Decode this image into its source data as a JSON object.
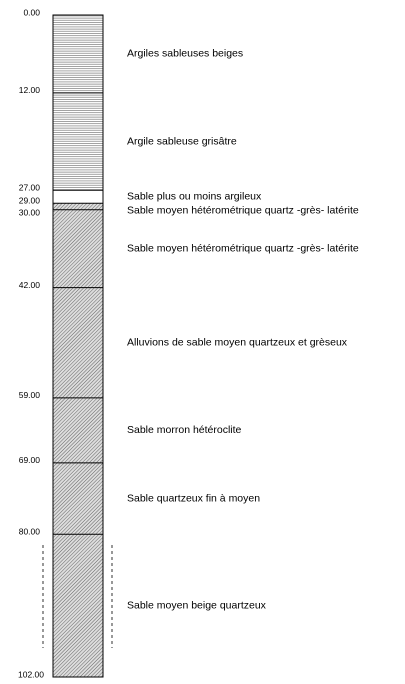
{
  "layers": [
    {
      "top": {
        "value": 0,
        "label": "0.00"
      },
      "description": "Argiles sableuses beiges",
      "pattern": "lines"
    },
    {
      "top": {
        "value": 12,
        "label": "12.00"
      },
      "description": "Argile sableuse grisâtre",
      "pattern": "lines"
    },
    {
      "top": {
        "value": 27,
        "label": "27.00"
      },
      "description": "Sable plus ou moins argileux",
      "pattern": "blank"
    },
    {
      "top": {
        "value": 29,
        "label": "29.00"
      },
      "description": "Sable moyen hétérométrique quartz -grès- latérite",
      "pattern": "hatch"
    },
    {
      "top": {
        "value": 30,
        "label": "30.00"
      },
      "description": "Sable moyen hétérométrique quartz -grès- latérite",
      "pattern": "hatch"
    },
    {
      "top": {
        "value": 42,
        "label": "42.00"
      },
      "description": "Alluvions de sable moyen quartzeux et grèseux",
      "pattern": "hatch"
    },
    {
      "top": {
        "value": 59,
        "label": "59.00"
      },
      "description": "Sable morron hétéroclite",
      "pattern": "hatch"
    },
    {
      "top": {
        "value": 69,
        "label": "69.00"
      },
      "description": "Sable quartzeux fin à moyen",
      "pattern": "hatch"
    },
    {
      "top": {
        "value": 80,
        "label": "80.00"
      },
      "description": "Sable moyen beige quartzeux",
      "pattern": "hatch"
    }
  ],
  "bottom": {
    "value": 102,
    "label": "102.00"
  }
}
